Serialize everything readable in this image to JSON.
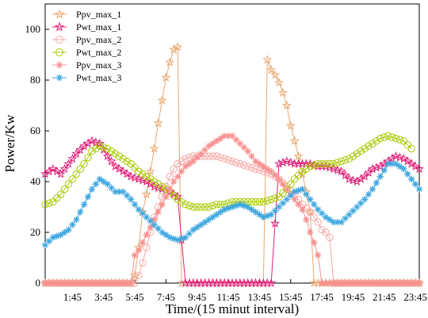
{
  "chart_data": {
    "type": "line",
    "title": "",
    "xlabel": "Time/(15 minut interval)",
    "ylabel": "Power/Kw",
    "xlim": [
      0,
      96
    ],
    "ylim": [
      0,
      110
    ],
    "x_tick_labels": [
      "1:45",
      "3:45",
      "5:45",
      "7:45",
      "9:45",
      "11:45",
      "13:45",
      "15:45",
      "17:45",
      "19:45",
      "21:45",
      "23:45"
    ],
    "x_tick_positions": [
      7,
      15,
      23,
      31,
      39,
      47,
      55,
      63,
      71,
      79,
      87,
      95
    ],
    "y_ticks": [
      0,
      20,
      40,
      60,
      80,
      100
    ],
    "y_tick_labels": [
      "0",
      "20",
      "40",
      "60",
      "80",
      "100"
    ],
    "legend_placement": "top-left",
    "series": [
      {
        "name": "Ppv_max_1",
        "marker": "star-open",
        "color": "#e8a870",
        "points": [
          [
            0,
            0
          ],
          [
            22,
            0
          ],
          [
            23,
            3
          ],
          [
            24,
            14
          ],
          [
            25,
            28
          ],
          [
            26,
            35
          ],
          [
            27,
            44
          ],
          [
            28,
            53
          ],
          [
            29,
            63
          ],
          [
            30,
            72
          ],
          [
            31,
            81
          ],
          [
            32,
            87
          ],
          [
            33,
            92
          ],
          [
            34,
            93
          ],
          [
            35,
            0
          ],
          [
            56,
            0
          ],
          [
            57,
            88
          ],
          [
            58,
            84
          ],
          [
            59,
            82
          ],
          [
            60,
            79
          ],
          [
            61,
            75
          ],
          [
            62,
            70
          ],
          [
            63,
            62
          ],
          [
            64,
            56
          ],
          [
            65,
            50
          ],
          [
            66,
            43
          ],
          [
            67,
            36
          ],
          [
            68,
            28
          ],
          [
            69,
            0
          ],
          [
            96,
            0
          ]
        ]
      },
      {
        "name": "Pwt_max_1",
        "marker": "star-open",
        "color": "#e0207a",
        "points": [
          [
            0,
            43
          ],
          [
            2,
            45
          ],
          [
            4,
            43
          ],
          [
            6,
            47
          ],
          [
            8,
            51
          ],
          [
            10,
            54
          ],
          [
            12,
            56
          ],
          [
            14,
            55
          ],
          [
            16,
            50
          ],
          [
            18,
            46
          ],
          [
            20,
            44
          ],
          [
            22,
            42
          ],
          [
            24,
            41
          ],
          [
            26,
            40
          ],
          [
            28,
            38
          ],
          [
            30,
            37
          ],
          [
            32,
            36
          ],
          [
            34,
            34
          ],
          [
            36,
            0
          ],
          [
            58,
            0
          ],
          [
            60,
            47
          ],
          [
            62,
            48
          ],
          [
            64,
            47
          ],
          [
            66,
            47
          ],
          [
            68,
            47
          ],
          [
            70,
            46
          ],
          [
            72,
            46
          ],
          [
            74,
            45
          ],
          [
            76,
            44
          ],
          [
            78,
            41
          ],
          [
            80,
            40
          ],
          [
            82,
            42
          ],
          [
            84,
            45
          ],
          [
            86,
            46
          ],
          [
            88,
            48
          ],
          [
            90,
            50
          ],
          [
            92,
            49
          ],
          [
            94,
            47
          ],
          [
            96,
            45
          ]
        ]
      },
      {
        "name": "Ppv_max_2",
        "marker": "circle-open",
        "color": "#f4a8a4",
        "points": [
          [
            0,
            0
          ],
          [
            23,
            0
          ],
          [
            24,
            3
          ],
          [
            25,
            8
          ],
          [
            26,
            14
          ],
          [
            27,
            20
          ],
          [
            28,
            26
          ],
          [
            29,
            30
          ],
          [
            30,
            34
          ],
          [
            31,
            38
          ],
          [
            32,
            42
          ],
          [
            33,
            45
          ],
          [
            34,
            47
          ],
          [
            35,
            48
          ],
          [
            36,
            49
          ],
          [
            38,
            50
          ],
          [
            40,
            50
          ],
          [
            42,
            50
          ],
          [
            44,
            50
          ],
          [
            46,
            49
          ],
          [
            48,
            48
          ],
          [
            50,
            47
          ],
          [
            52,
            46
          ],
          [
            54,
            45
          ],
          [
            56,
            44
          ],
          [
            58,
            43
          ],
          [
            60,
            41
          ],
          [
            62,
            38
          ],
          [
            64,
            35
          ],
          [
            66,
            31
          ],
          [
            68,
            28
          ],
          [
            70,
            24
          ],
          [
            71,
            21
          ],
          [
            72,
            20
          ],
          [
            73,
            18
          ],
          [
            74,
            0
          ],
          [
            96,
            0
          ]
        ]
      },
      {
        "name": "Pwt_max_2",
        "marker": "circle-open",
        "color": "#a8c800",
        "points": [
          [
            0,
            31
          ],
          [
            2,
            32
          ],
          [
            4,
            35
          ],
          [
            6,
            39
          ],
          [
            8,
            43
          ],
          [
            10,
            47
          ],
          [
            12,
            52
          ],
          [
            14,
            54
          ],
          [
            16,
            53
          ],
          [
            18,
            51
          ],
          [
            20,
            49
          ],
          [
            22,
            47
          ],
          [
            24,
            44
          ],
          [
            26,
            42
          ],
          [
            28,
            40
          ],
          [
            30,
            38
          ],
          [
            32,
            36
          ],
          [
            34,
            33
          ],
          [
            36,
            31
          ],
          [
            38,
            30
          ],
          [
            40,
            30
          ],
          [
            42,
            30
          ],
          [
            44,
            31
          ],
          [
            46,
            31
          ],
          [
            48,
            32
          ],
          [
            50,
            32
          ],
          [
            52,
            32
          ],
          [
            54,
            32
          ],
          [
            56,
            32
          ],
          [
            58,
            33
          ],
          [
            60,
            34
          ],
          [
            62,
            37
          ],
          [
            64,
            41
          ],
          [
            66,
            44
          ],
          [
            68,
            46
          ],
          [
            70,
            47
          ],
          [
            72,
            47
          ],
          [
            74,
            47
          ],
          [
            76,
            48
          ],
          [
            78,
            49
          ],
          [
            80,
            51
          ],
          [
            82,
            53
          ],
          [
            84,
            55
          ],
          [
            86,
            57
          ],
          [
            88,
            58
          ],
          [
            90,
            57
          ],
          [
            92,
            56
          ],
          [
            94,
            53
          ]
        ]
      },
      {
        "name": "Ppv_max_3",
        "marker": "asterisk",
        "color": "#f89090",
        "points": [
          [
            0,
            0
          ],
          [
            22,
            0
          ],
          [
            23,
            11
          ],
          [
            24,
            13
          ],
          [
            25,
            16
          ],
          [
            26,
            19
          ],
          [
            27,
            22
          ],
          [
            28,
            25
          ],
          [
            29,
            28
          ],
          [
            30,
            31
          ],
          [
            31,
            34
          ],
          [
            32,
            37
          ],
          [
            33,
            40
          ],
          [
            34,
            42
          ],
          [
            35,
            44
          ],
          [
            36,
            46
          ],
          [
            38,
            48
          ],
          [
            40,
            51
          ],
          [
            42,
            54
          ],
          [
            44,
            56
          ],
          [
            46,
            58
          ],
          [
            48,
            58
          ],
          [
            50,
            55
          ],
          [
            52,
            52
          ],
          [
            54,
            48
          ],
          [
            56,
            46
          ],
          [
            58,
            44
          ],
          [
            60,
            41
          ],
          [
            62,
            37
          ],
          [
            64,
            33
          ],
          [
            66,
            29
          ],
          [
            67,
            25
          ],
          [
            68,
            20
          ],
          [
            69,
            16
          ],
          [
            70,
            11
          ],
          [
            71,
            0
          ],
          [
            96,
            0
          ]
        ]
      },
      {
        "name": "Pwt_max_3",
        "marker": "asterisk",
        "color": "#40a8e0",
        "points": [
          [
            0,
            15
          ],
          [
            2,
            18
          ],
          [
            4,
            19
          ],
          [
            6,
            21
          ],
          [
            8,
            25
          ],
          [
            10,
            31
          ],
          [
            12,
            37
          ],
          [
            14,
            41
          ],
          [
            16,
            39
          ],
          [
            18,
            36
          ],
          [
            20,
            36
          ],
          [
            22,
            33
          ],
          [
            24,
            29
          ],
          [
            26,
            26
          ],
          [
            28,
            23
          ],
          [
            30,
            20
          ],
          [
            32,
            18
          ],
          [
            34,
            17
          ],
          [
            36,
            18
          ],
          [
            38,
            21
          ],
          [
            40,
            23
          ],
          [
            42,
            25
          ],
          [
            44,
            27
          ],
          [
            46,
            29
          ],
          [
            48,
            30
          ],
          [
            50,
            31
          ],
          [
            52,
            30
          ],
          [
            54,
            28
          ],
          [
            56,
            26
          ],
          [
            58,
            27
          ],
          [
            60,
            30
          ],
          [
            62,
            33
          ],
          [
            64,
            36
          ],
          [
            66,
            37
          ],
          [
            68,
            33
          ],
          [
            70,
            29
          ],
          [
            72,
            26
          ],
          [
            74,
            24
          ],
          [
            76,
            24
          ],
          [
            78,
            27
          ],
          [
            80,
            30
          ],
          [
            82,
            33
          ],
          [
            84,
            37
          ],
          [
            86,
            42
          ],
          [
            88,
            47
          ],
          [
            90,
            47
          ],
          [
            92,
            45
          ],
          [
            94,
            41
          ],
          [
            96,
            37
          ]
        ]
      }
    ]
  }
}
